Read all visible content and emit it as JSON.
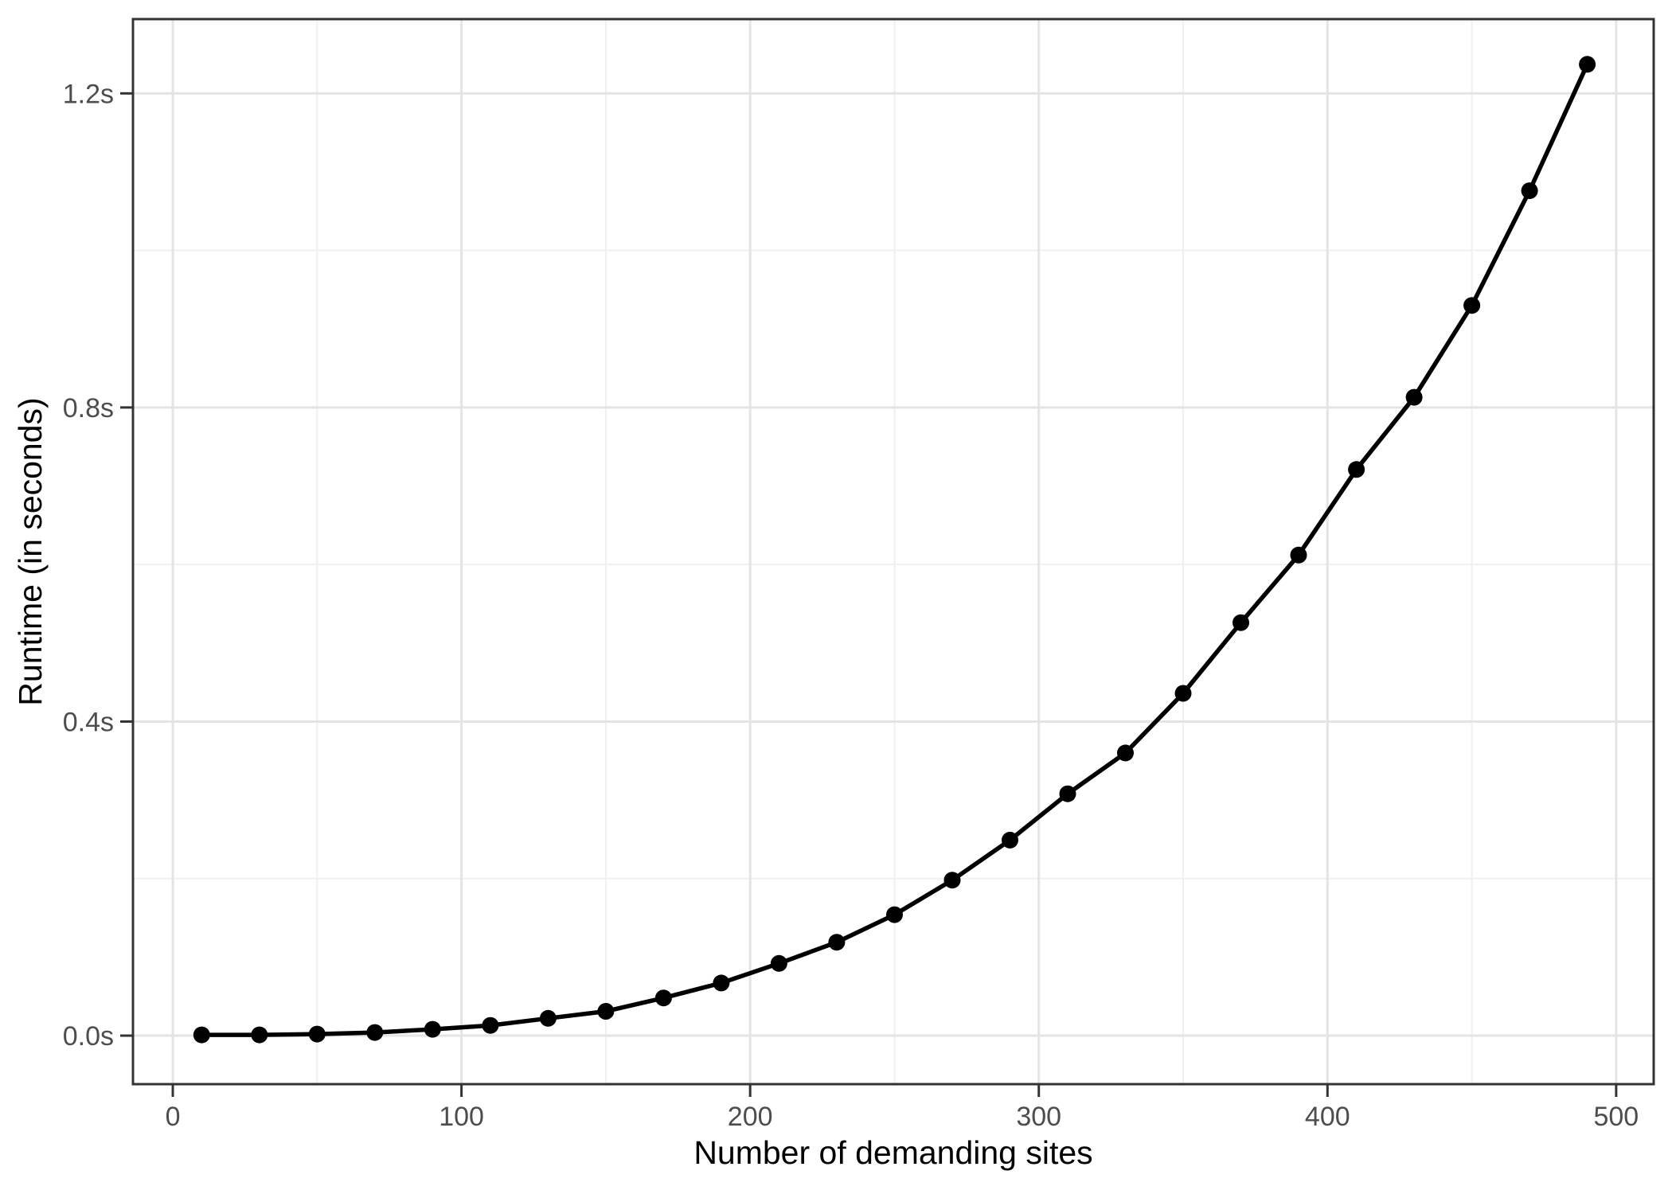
{
  "chart_data": {
    "type": "line",
    "title": "",
    "xlabel": "Number of demanding sites",
    "ylabel": "Runtime (in seconds)",
    "series": [
      {
        "name": "runtime",
        "marker": "circle",
        "x": [
          10,
          30,
          50,
          70,
          90,
          110,
          130,
          150,
          170,
          190,
          210,
          230,
          250,
          270,
          290,
          310,
          330,
          350,
          370,
          390,
          410,
          430,
          450,
          470,
          490
        ],
        "y": [
          0.001,
          0.001,
          0.002,
          0.004,
          0.008,
          0.013,
          0.022,
          0.031,
          0.048,
          0.067,
          0.092,
          0.119,
          0.154,
          0.198,
          0.249,
          0.308,
          0.36,
          0.436,
          0.526,
          0.612,
          0.721,
          0.813,
          0.93,
          1.076,
          1.237
        ]
      }
    ],
    "x_ticks": [
      0,
      100,
      200,
      300,
      400,
      500
    ],
    "x_tick_labels": [
      "0",
      "100",
      "200",
      "300",
      "400",
      "500"
    ],
    "x_minor_ticks": [
      50,
      150,
      250,
      350,
      450
    ],
    "y_ticks": [
      0.0,
      0.4,
      0.8,
      1.2
    ],
    "y_tick_labels": [
      "0.0s",
      "0.4s",
      "0.8s",
      "1.2s"
    ],
    "y_minor_ticks": [
      0.2,
      0.6,
      1.0
    ],
    "xlim": [
      -13.8,
      513.0
    ],
    "ylim": [
      -0.0618,
      1.2946
    ],
    "grid": "major+minor",
    "legend": false,
    "colors": {
      "line": "#000000",
      "point": "#000000",
      "grid_major": "#e4e4e4",
      "grid_minor": "#f0f0f0",
      "panel_border": "#333333",
      "tick_mark": "#333333",
      "tick_label": "#4d4d4d",
      "axis_title": "#000000",
      "background": "#ffffff"
    }
  }
}
